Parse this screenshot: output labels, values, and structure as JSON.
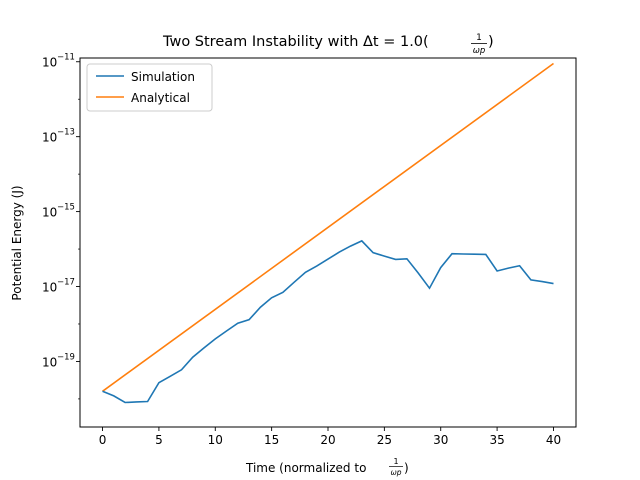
{
  "chart_data": {
    "type": "line",
    "title_main": "Two Stream Instability with Δt = 1.0(",
    "title_frac_num": "1",
    "title_frac_den": "ωp",
    "title_close": ")",
    "xlabel_main": "Time (normalized to ",
    "xlabel_frac_num": "1",
    "xlabel_frac_den": "ωp",
    "xlabel_close": ")",
    "ylabel": "Potential Energy (J)",
    "xlim": [
      -2,
      42
    ],
    "ylim_log10": [
      -20.75,
      -10.9
    ],
    "y_scale": "log",
    "x_ticks": [
      0,
      5,
      10,
      15,
      20,
      25,
      30,
      35,
      40
    ],
    "x_tick_labels": [
      "0",
      "5",
      "10",
      "15",
      "20",
      "25",
      "30",
      "35",
      "40"
    ],
    "y_ticks_log10": [
      -19,
      -17,
      -15,
      -13,
      -11
    ],
    "y_tick_labels": [
      {
        "base": "10",
        "exp": "−19"
      },
      {
        "base": "10",
        "exp": "−17"
      },
      {
        "base": "10",
        "exp": "−15"
      },
      {
        "base": "10",
        "exp": "−13"
      },
      {
        "base": "10",
        "exp": "−11"
      }
    ],
    "grid": false,
    "legend_position": "top-left",
    "series": [
      {
        "name": "Simulation",
        "color": "#1f77b4",
        "x": [
          0,
          1,
          2,
          3,
          4,
          5,
          6,
          7,
          8,
          9,
          10,
          11,
          12,
          13,
          14,
          15,
          16,
          17,
          18,
          19,
          20,
          21,
          22,
          23,
          24,
          25,
          26,
          27,
          28,
          29,
          30,
          31,
          32,
          33,
          34,
          35,
          36,
          37,
          38,
          39,
          40
        ],
        "y": [
          1.6e-20,
          1.2e-20,
          8e-21,
          8.3e-21,
          8.5e-21,
          2.7e-20,
          4e-20,
          6e-20,
          1.3e-19,
          2.3e-19,
          4e-19,
          6.5e-19,
          1.05e-18,
          1.3e-18,
          2.8e-18,
          5e-18,
          7e-18,
          1.3e-17,
          2.4e-17,
          3.5e-17,
          5.4e-17,
          8.3e-17,
          1.2e-16,
          1.65e-16,
          8e-17,
          6.5e-17,
          5.3e-17,
          5.5e-17,
          2.3e-17,
          9e-18,
          3.2e-17,
          7.5e-17,
          7.4e-17,
          7.3e-17,
          7.2e-17,
          2.6e-17,
          3.1e-17,
          3.6e-17,
          1.5e-17,
          1.35e-17,
          1.2e-17
        ]
      },
      {
        "name": "Analytical",
        "color": "#ff7f0e",
        "x": [
          0,
          40
        ],
        "y": [
          1.6e-20,
          9e-12
        ]
      }
    ]
  }
}
